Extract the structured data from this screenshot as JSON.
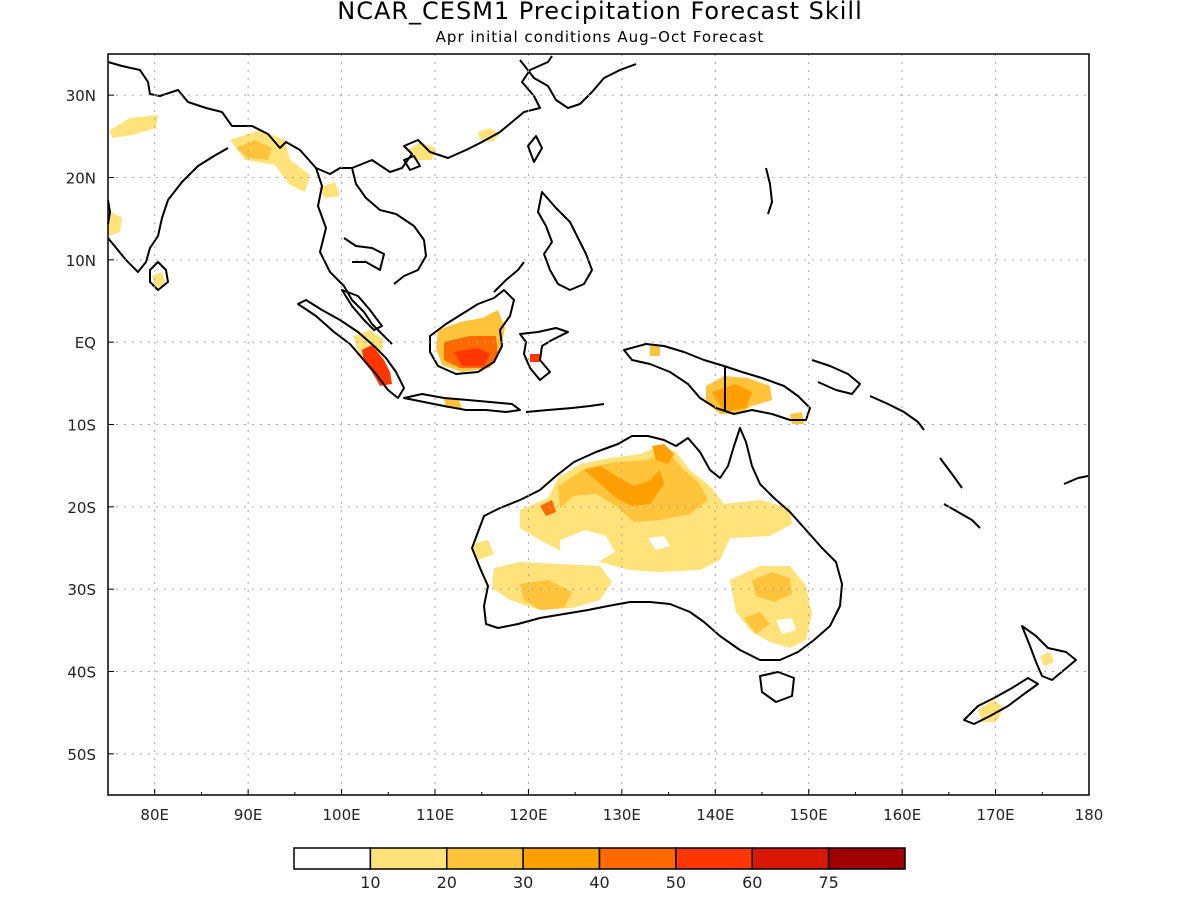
{
  "title": "NCAR_CESM1 Precipitation Forecast Skill",
  "subtitle": "Apr initial conditions  Aug–Oct Forecast",
  "map": {
    "lon_range": [
      75,
      180
    ],
    "lat_range": [
      -55,
      35
    ],
    "lon_ticks": [
      "80E",
      "90E",
      "100E",
      "110E",
      "120E",
      "130E",
      "140E",
      "150E",
      "160E",
      "170E",
      "180"
    ],
    "lat_ticks": [
      "30N",
      "20N",
      "10N",
      "EQ",
      "10S",
      "20S",
      "30S",
      "40S",
      "50S"
    ],
    "gridlines": true
  },
  "colorbar": {
    "colors": [
      "#ffffff",
      "#ffe27a",
      "#ffc43c",
      "#ffa000",
      "#ff6a00",
      "#ff3600",
      "#d81800",
      "#a00000"
    ],
    "labels": [
      "10",
      "20",
      "30",
      "40",
      "50",
      "60",
      "75"
    ]
  }
}
